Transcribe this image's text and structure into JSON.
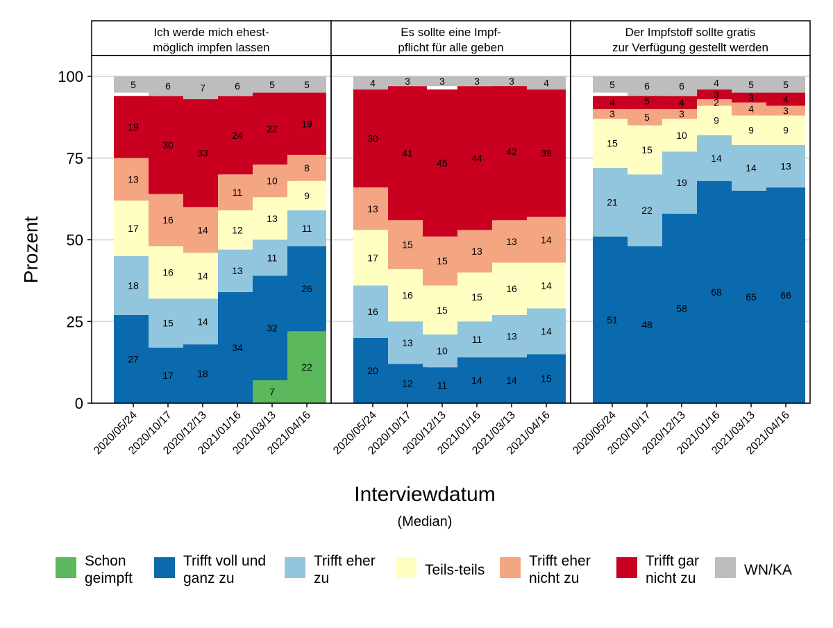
{
  "chart_data": {
    "type": "bar",
    "stacked": true,
    "ylabel": "Prozent",
    "xlabel": "Interviewdatum",
    "xsublabel": "(Median)",
    "ylim": [
      0,
      100
    ],
    "yticks": [
      0,
      25,
      50,
      75,
      100
    ],
    "grid": true,
    "legend_position": "bottom",
    "categories": [
      "2020/05/24",
      "2020/10/17",
      "2020/12/13",
      "2021/01/16",
      "2021/03/13",
      "2021/04/16"
    ],
    "legend": [
      {
        "key": "geimpft",
        "label1": "Schon",
        "label2": "geimpft",
        "color": "#5cb85c"
      },
      {
        "key": "voll",
        "label1": "Trifft voll und",
        "label2": "ganz zu",
        "color": "#0a6aad"
      },
      {
        "key": "eher",
        "label1": "Trifft eher",
        "label2": "zu",
        "color": "#92c5de"
      },
      {
        "key": "teils",
        "label1": "Teils-teils",
        "label2": "",
        "color": "#ffffc4"
      },
      {
        "key": "ehernicht",
        "label1": "Trifft eher",
        "label2": "nicht zu",
        "color": "#f4a582"
      },
      {
        "key": "garnicht",
        "label1": "Trifft gar",
        "label2": "nicht zu",
        "color": "#ca0020"
      },
      {
        "key": "wnka",
        "label1": "WN/KA",
        "label2": "",
        "color": "#bdbdbd"
      }
    ],
    "panels": [
      {
        "title1": "Ich werde mich ehest-",
        "title2": "möglich impfen lassen",
        "series": {
          "geimpft": [
            0,
            0,
            0,
            0,
            7,
            22
          ],
          "voll": [
            27,
            17,
            18,
            34,
            32,
            26
          ],
          "eher": [
            18,
            15,
            14,
            13,
            11,
            11
          ],
          "teils": [
            17,
            16,
            14,
            12,
            13,
            9
          ],
          "ehernicht": [
            13,
            16,
            14,
            11,
            10,
            8
          ],
          "garnicht": [
            19,
            30,
            33,
            24,
            22,
            19
          ],
          "wnka": [
            5,
            6,
            7,
            6,
            5,
            5
          ]
        }
      },
      {
        "title1": "Es sollte eine Impf-",
        "title2": "pflicht für alle geben",
        "series": {
          "geimpft": [
            0,
            0,
            0,
            0,
            0,
            0
          ],
          "voll": [
            20,
            12,
            11,
            14,
            14,
            15
          ],
          "eher": [
            16,
            13,
            10,
            11,
            13,
            14
          ],
          "teils": [
            17,
            16,
            15,
            15,
            16,
            14
          ],
          "ehernicht": [
            13,
            15,
            15,
            13,
            13,
            14
          ],
          "garnicht": [
            30,
            41,
            45,
            44,
            42,
            39
          ],
          "wnka": [
            4,
            3,
            3,
            3,
            3,
            4
          ]
        }
      },
      {
        "title1": "Der Impfstoff sollte gratis",
        "title2": "zur Verfügung gestellt werden",
        "series": {
          "geimpft": [
            0,
            0,
            0,
            0,
            0,
            0
          ],
          "voll": [
            51,
            48,
            58,
            68,
            65,
            66
          ],
          "eher": [
            21,
            22,
            19,
            14,
            14,
            13
          ],
          "teils": [
            15,
            15,
            10,
            9,
            9,
            9
          ],
          "ehernicht": [
            3,
            5,
            3,
            2,
            4,
            3
          ],
          "garnicht": [
            4,
            5,
            4,
            3,
            3,
            4
          ],
          "wnka": [
            5,
            6,
            6,
            4,
            5,
            5
          ]
        }
      }
    ]
  }
}
